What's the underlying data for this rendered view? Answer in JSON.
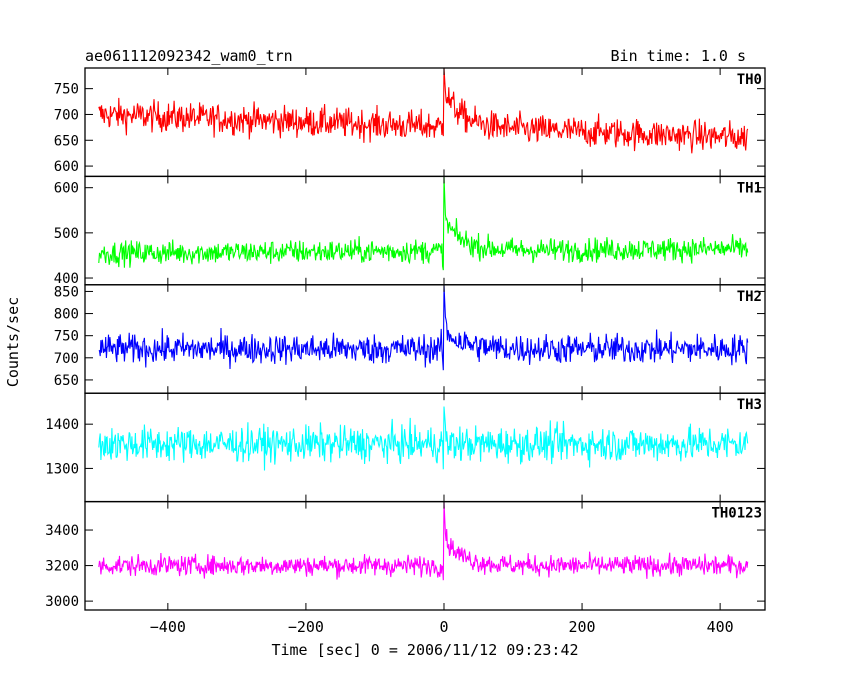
{
  "chart_data": {
    "type": "line",
    "title": "ae061112092342_wam0_trn",
    "subtitle": "Bin time: 1.0 s",
    "xlabel": "Time [sec] 0 = 2006/11/12 09:23:42",
    "ylabel": "Counts/sec",
    "xlim": [
      -520,
      465
    ],
    "x_ticks": [
      -400,
      -200,
      0,
      200,
      400
    ],
    "x_range_data": [
      -500,
      440
    ],
    "burst_time": 0,
    "grid": false,
    "panels": [
      {
        "name": "TH0",
        "color": "#ff0000",
        "ylim": [
          580,
          790
        ],
        "y_ticks": [
          600,
          650,
          700,
          750
        ],
        "baseline_start": 700,
        "baseline_end": 655,
        "noise": 28,
        "peak": 790,
        "decay_amp": 70
      },
      {
        "name": "TH1",
        "color": "#00ff00",
        "ylim": [
          385,
          625
        ],
        "y_ticks": [
          400,
          500,
          600
        ],
        "baseline_start": 455,
        "baseline_end": 465,
        "noise": 25,
        "peak": 625,
        "decay_amp": 70
      },
      {
        "name": "TH2",
        "color": "#0000ff",
        "ylim": [
          620,
          865
        ],
        "y_ticks": [
          650,
          700,
          750,
          800,
          850
        ],
        "baseline_start": 720,
        "baseline_end": 720,
        "noise": 32,
        "peak": 865,
        "decay_amp": 45
      },
      {
        "name": "TH3",
        "color": "#00ffff",
        "ylim": [
          1225,
          1470
        ],
        "y_ticks": [
          1300,
          1400
        ],
        "baseline_start": 1355,
        "baseline_end": 1355,
        "noise": 38,
        "peak": 1440,
        "decay_amp": 0
      },
      {
        "name": "TH0123",
        "color": "#ff00ff",
        "ylim": [
          2950,
          3560
        ],
        "y_ticks": [
          3000,
          3200,
          3400
        ],
        "baseline_start": 3200,
        "baseline_end": 3200,
        "noise": 55,
        "peak": 3560,
        "decay_amp": 160
      }
    ]
  }
}
